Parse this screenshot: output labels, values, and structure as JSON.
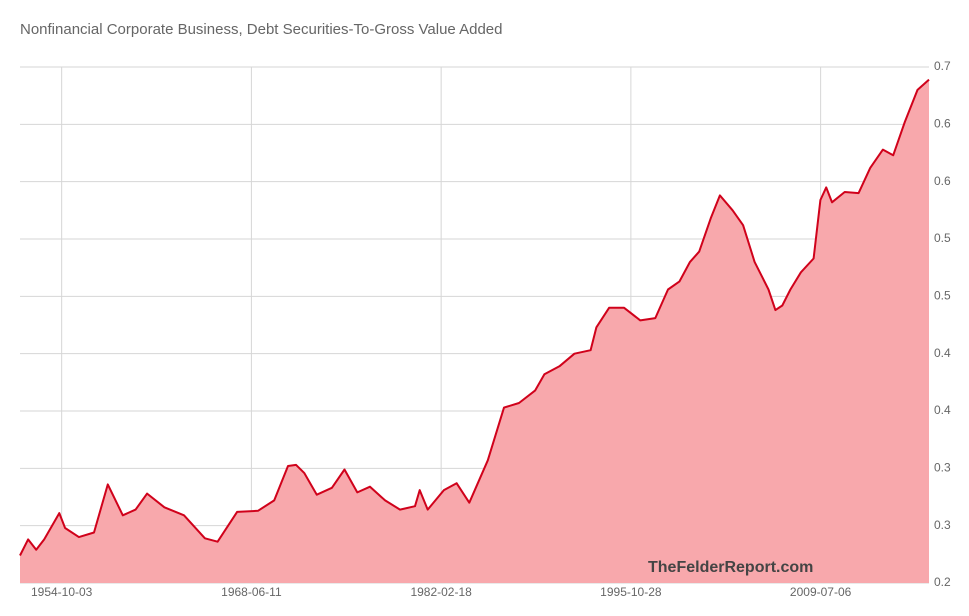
{
  "chart_data": {
    "type": "area",
    "title": "Nonfinancial Corporate Business, Debt Securities-To-Gross Value Added",
    "watermark": "TheFelderReport.com",
    "color": "#d0021b",
    "area_color": "#f8a8ac",
    "grid": true,
    "y_axis_side": "right",
    "xlim": [
      "1951-10-01",
      "2017-05-01"
    ],
    "xticks": [
      "1954-10-03",
      "1968-06-11",
      "1982-02-18",
      "1995-10-28",
      "2009-07-06"
    ],
    "ylim": [
      0.2,
      0.65
    ],
    "yticks": [
      0.2,
      {
        "value": 0.25,
        "label": "0.3"
      },
      0.3,
      {
        "value": 0.35,
        "label": "0.4"
      },
      0.4,
      {
        "value": 0.45,
        "label": "0.5"
      },
      0.5,
      {
        "value": 0.55,
        "label": "0.6"
      },
      0.6,
      {
        "value": 0.65,
        "label": "0.7"
      }
    ],
    "x": [
      "1951-10-01",
      "1952-05-01",
      "1952-12-01",
      "1953-07-01",
      "1954-08-01",
      "1955-01-01",
      "1956-01-01",
      "1957-02-01",
      "1958-02-01",
      "1959-03-01",
      "1960-02-01",
      "1960-12-01",
      "1962-03-01",
      "1963-08-01",
      "1965-02-01",
      "1966-01-01",
      "1967-06-01",
      "1968-12-01",
      "1970-02-01",
      "1971-02-01",
      "1971-09-01",
      "1972-04-01",
      "1973-03-01",
      "1974-04-01",
      "1975-03-01",
      "1976-02-01",
      "1977-01-01",
      "1978-02-01",
      "1979-03-01",
      "1980-04-01",
      "1980-08-01",
      "1981-03-01",
      "1982-05-01",
      "1983-04-01",
      "1984-03-01",
      "1985-07-01",
      "1986-09-01",
      "1987-10-01",
      "1988-12-01",
      "1989-08-01",
      "1990-09-01",
      "1991-10-01",
      "1992-12-01",
      "1993-05-01",
      "1994-04-01",
      "1995-05-01",
      "1996-07-01",
      "1997-08-01",
      "1998-07-01",
      "1999-05-01",
      "2000-02-01",
      "2000-10-01",
      "2001-08-01",
      "2002-04-01",
      "2003-03-01",
      "2003-12-01",
      "2004-10-01",
      "2005-10-01",
      "2006-04-01",
      "2006-10-01",
      "2007-05-01",
      "2008-02-01",
      "2009-01-01",
      "2009-07-01",
      "2009-12-01",
      "2010-05-01",
      "2011-04-01",
      "2012-04-01",
      "2013-02-01",
      "2014-01-01",
      "2014-10-01",
      "2015-08-01",
      "2016-07-01",
      "2017-05-01"
    ],
    "values": [
      0.224,
      0.238,
      0.229,
      0.238,
      0.261,
      0.248,
      0.24,
      0.244,
      0.286,
      0.259,
      0.264,
      0.278,
      0.266,
      0.259,
      0.239,
      0.236,
      0.262,
      0.263,
      0.272,
      0.302,
      0.303,
      0.296,
      0.277,
      0.283,
      0.299,
      0.279,
      0.284,
      0.272,
      0.264,
      0.267,
      0.281,
      0.264,
      0.281,
      0.287,
      0.27,
      0.307,
      0.353,
      0.357,
      0.368,
      0.382,
      0.389,
      0.4,
      0.403,
      0.423,
      0.44,
      0.44,
      0.429,
      0.431,
      0.456,
      0.463,
      0.48,
      0.489,
      0.518,
      0.538,
      0.525,
      0.512,
      0.48,
      0.456,
      0.438,
      0.442,
      0.456,
      0.471,
      0.483,
      0.534,
      0.545,
      0.532,
      0.541,
      0.54,
      0.562,
      0.578,
      0.573,
      0.602,
      0.63,
      0.639
    ]
  }
}
